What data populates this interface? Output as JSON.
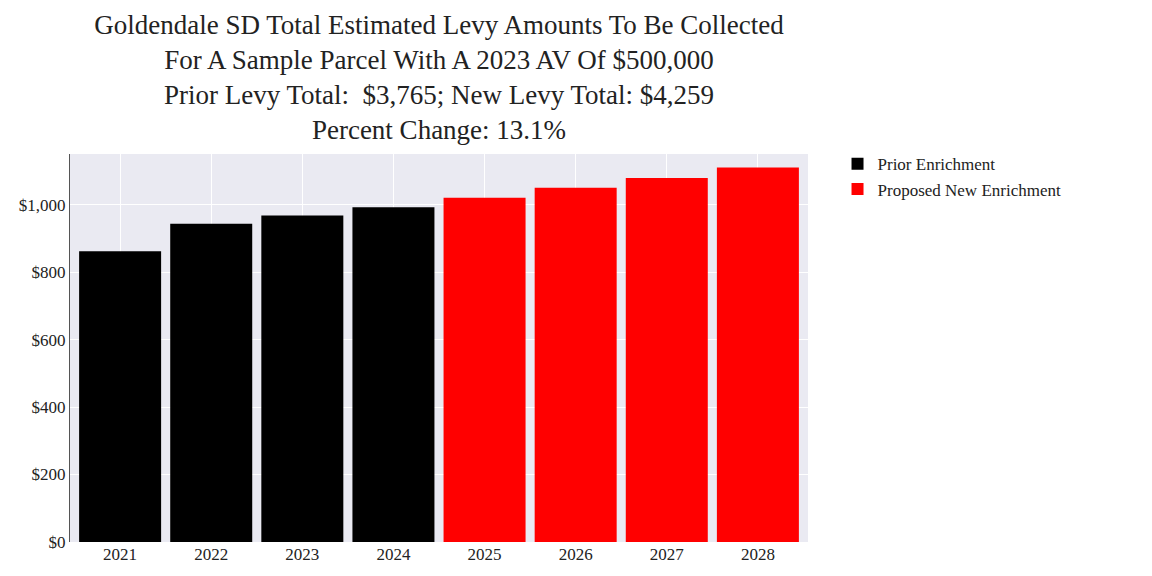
{
  "chart_data": {
    "type": "bar",
    "title": [
      "Goldendale SD Total Estimated Levy Amounts To Be Collected",
      "For A Sample Parcel With A 2023 AV Of $500,000",
      "Prior Levy Total:  $3,765; New Levy Total: $4,259",
      "Percent Change: 13.1%"
    ],
    "categories": [
      "2021",
      "2022",
      "2023",
      "2024",
      "2025",
      "2026",
      "2027",
      "2028"
    ],
    "series": [
      {
        "name": "Prior Enrichment",
        "color": "#000000",
        "values": [
          862,
          943,
          968,
          992,
          null,
          null,
          null,
          null
        ]
      },
      {
        "name": "Proposed New Enrichment",
        "color": "#ff0000",
        "values": [
          null,
          null,
          null,
          null,
          1020,
          1050,
          1079,
          1110
        ]
      }
    ],
    "ylim": [
      0,
      1150
    ],
    "yticks": [
      {
        "value": 0,
        "label": "$0"
      },
      {
        "value": 200,
        "label": "$200"
      },
      {
        "value": 400,
        "label": "$400"
      },
      {
        "value": 600,
        "label": "$600"
      },
      {
        "value": 800,
        "label": "$800"
      },
      {
        "value": 1000,
        "label": "$1,000"
      }
    ],
    "grid": true,
    "legend": "right"
  }
}
